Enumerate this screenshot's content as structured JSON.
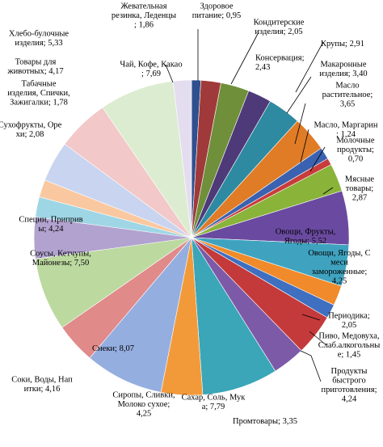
{
  "chart_data": {
    "type": "pie",
    "title": "",
    "slices": [
      {
        "name": "Здоровое питание",
        "value": 0.95,
        "color": "#2f4f8f",
        "label_lines": [
          "Здоровое",
          "питание; 0,95"
        ]
      },
      {
        "name": "Кондитерские изделия",
        "value": 2.05,
        "color": "#a03a3a",
        "label_lines": [
          "Кондитерские",
          "изделия; 2,05"
        ]
      },
      {
        "name": "Крупы",
        "value": 2.91,
        "color": "#6f8f3a",
        "label_lines": [
          "Крупы; 2,91"
        ]
      },
      {
        "name": "Консервация",
        "value": 2.43,
        "color": "#4e3a78",
        "label_lines": [
          "Консервация;",
          "2,43"
        ]
      },
      {
        "name": "Макаронные изделия",
        "value": 3.4,
        "color": "#2e8aa0",
        "label_lines": [
          "Макаронные",
          "изделия; 3,40"
        ]
      },
      {
        "name": "Масло растительное",
        "value": 3.65,
        "color": "#e07b26",
        "label_lines": [
          "Масло",
          "растительное;",
          "3,65"
        ]
      },
      {
        "name": "Масло, Маргарин",
        "value": 1.24,
        "color": "#3a62b0",
        "label_lines": [
          "Масло, Маргарин",
          "; 1,24"
        ]
      },
      {
        "name": "Молочные продукты",
        "value": 0.7,
        "color": "#c83c3c",
        "label_lines": [
          "Молочные",
          "продукты;",
          "0,70"
        ]
      },
      {
        "name": "Мясные товары",
        "value": 2.87,
        "color": "#8ab33a",
        "label_lines": [
          "Мясные",
          "товары;",
          "2,87"
        ]
      },
      {
        "name": "Овощи, Фрукты, Ягоды",
        "value": 5.52,
        "color": "#6a4aa0",
        "label_lines": [
          "Овощи, Фрукты,",
          "Ягоды; 5,52"
        ]
      },
      {
        "name": "Овощи, Ягоды, Смеси замороженные",
        "value": 4.25,
        "color": "#3fa3c0",
        "label_lines": [
          "Овощи, Ягоды, С",
          "меси",
          "замороженные;",
          "4,25"
        ]
      },
      {
        "name": "Периодика",
        "value": 2.05,
        "color": "#f08a2a",
        "label_lines": [
          "Периодика;",
          "2,05"
        ]
      },
      {
        "name": "Пиво, Медовуха, Слаб.алкогольные",
        "value": 1.45,
        "color": "#3e6fc0",
        "label_lines": [
          "Пиво, Медовуха,",
          "Слаб.алкогольны",
          "е; 1,45"
        ]
      },
      {
        "name": "Продукты быстрого приготовления",
        "value": 4.24,
        "color": "#c43a3a",
        "label_lines": [
          "Продукты",
          "быстрого",
          "приготовления;",
          "4,24"
        ]
      },
      {
        "name": "Промтовары",
        "value": 3.35,
        "color": "#7d5aa8",
        "label_lines": [
          "Промтовары; 3,35"
        ]
      },
      {
        "name": "Сахар, Соль, Мука",
        "value": 7.79,
        "color": "#3aa6b8",
        "label_lines": [
          "Сахар, Соль, Мук",
          "а; 7,79"
        ]
      },
      {
        "name": "Сиропы, Сливки, Молоко сухое",
        "value": 4.25,
        "color": "#f29a3a",
        "label_lines": [
          "Сиропы, Сливки,",
          "Молоко сухое;",
          "4,25"
        ]
      },
      {
        "name": "Снеки",
        "value": 8.07,
        "color": "#95aee0",
        "label_lines": [
          "Снеки; 8,07"
        ]
      },
      {
        "name": "Соки, Воды, Напитки",
        "value": 4.16,
        "color": "#e08a8a",
        "label_lines": [
          "Соки, Воды, Нап",
          "итки; 4,16"
        ]
      },
      {
        "name": "Соусы, Кетчупы, Майонезы",
        "value": 7.5,
        "color": "#bcd9a0",
        "label_lines": [
          "Соусы, Кетчупы,",
          "Майонезы; 7,50"
        ]
      },
      {
        "name": "Специи, Приправы",
        "value": 4.24,
        "color": "#b2a2cf",
        "label_lines": [
          "Специи, Приприв",
          "ы; 4,24"
        ]
      },
      {
        "name": "Сухофрукты, Орехи",
        "value": 2.08,
        "color": "#9fd6e6",
        "label_lines": [
          "Сухофрукты, Оре",
          "хи; 2,08"
        ]
      },
      {
        "name": "Табачные изделия, Спички, Зажигалки",
        "value": 1.78,
        "color": "#fac8a0",
        "label_lines": [
          "Табачные",
          "изделия, Спички,",
          "Зажигалки; 1,78"
        ]
      },
      {
        "name": "Товары для животных",
        "value": 4.17,
        "color": "#c8d4f0",
        "label_lines": [
          "Товары для",
          "животных; 4,17"
        ]
      },
      {
        "name": "Хлебо-булочные изделия",
        "value": 5.33,
        "color": "#f2c8c8",
        "label_lines": [
          "Хлебо-булочные",
          "изделия; 5,33"
        ]
      },
      {
        "name": "Чай, Кофе, Какао",
        "value": 7.69,
        "color": "#dcecd0",
        "label_lines": [
          "Чай, Кофе, Какао",
          "; 7,69"
        ]
      },
      {
        "name": "Жевательная резинка, Леденцы",
        "value": 1.86,
        "color": "#e4ddf0",
        "label_lines": [
          "Жевательная",
          "резинка, Леденцы",
          "; 1,86"
        ]
      }
    ]
  }
}
